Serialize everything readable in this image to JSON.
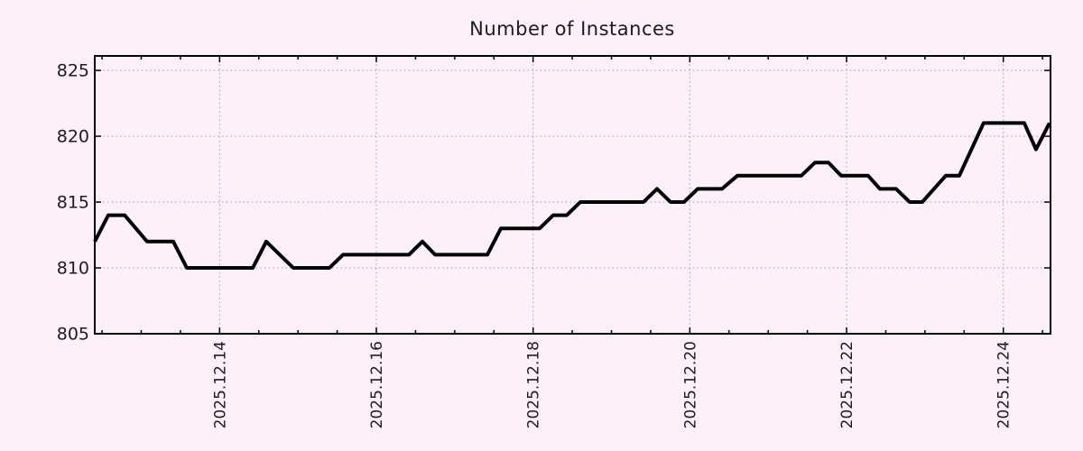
{
  "page": {
    "title": "Number of Instances"
  },
  "chart_data": {
    "type": "line",
    "title": "Number of Instances",
    "x_axis": {
      "kind": "time",
      "epoch": "2025.12.12",
      "unit": "days",
      "domain": [
        0.407,
        12.602
      ],
      "major_ticks": [
        {
          "day": 2,
          "label": "2025.12.14"
        },
        {
          "day": 4,
          "label": "2025.12.16"
        },
        {
          "day": 6,
          "label": "2025.12.18"
        },
        {
          "day": 8,
          "label": "2025.12.20"
        },
        {
          "day": 10,
          "label": "2025.12.22"
        },
        {
          "day": 12,
          "label": "2025.12.24"
        }
      ],
      "minor_tick_step": 0.5
    },
    "y_axis": {
      "domain": [
        805,
        826.1
      ],
      "ticks": [
        805,
        810,
        815,
        820,
        825
      ]
    },
    "grid": {
      "shown": true,
      "style": "dotted"
    },
    "legend": {
      "shown": false
    },
    "series": [
      {
        "name": "Number of Instances",
        "color": "#000000",
        "points": [
          [
            0.407,
            812
          ],
          [
            0.58,
            814
          ],
          [
            0.788,
            814
          ],
          [
            1.075,
            812
          ],
          [
            1.409,
            812
          ],
          [
            1.582,
            810
          ],
          [
            2.423,
            810
          ],
          [
            2.595,
            812
          ],
          [
            2.941,
            810
          ],
          [
            3.401,
            810
          ],
          [
            3.574,
            811
          ],
          [
            4.415,
            811
          ],
          [
            4.587,
            812
          ],
          [
            4.749,
            811
          ],
          [
            5.416,
            811
          ],
          [
            5.589,
            813
          ],
          [
            6.084,
            813
          ],
          [
            6.257,
            814
          ],
          [
            6.43,
            814
          ],
          [
            6.602,
            815
          ],
          [
            7.408,
            815
          ],
          [
            7.581,
            816
          ],
          [
            7.754,
            815
          ],
          [
            7.926,
            815
          ],
          [
            8.099,
            816
          ],
          [
            8.41,
            816
          ],
          [
            8.606,
            817
          ],
          [
            9.423,
            817
          ],
          [
            9.596,
            818
          ],
          [
            9.769,
            818
          ],
          [
            9.93,
            817
          ],
          [
            10.275,
            817
          ],
          [
            10.425,
            816
          ],
          [
            10.632,
            816
          ],
          [
            10.805,
            815
          ],
          [
            10.966,
            815
          ],
          [
            11.265,
            817
          ],
          [
            11.438,
            817
          ],
          [
            11.749,
            821
          ],
          [
            12.267,
            821
          ],
          [
            12.417,
            819
          ],
          [
            12.589,
            821
          ]
        ]
      }
    ]
  },
  "style": {
    "background_color": "#fdf0f8",
    "line_color": "#000000",
    "axis_color": "#000000",
    "grid_color": "#9c9c9c",
    "text_color": "#1c1c1c"
  }
}
